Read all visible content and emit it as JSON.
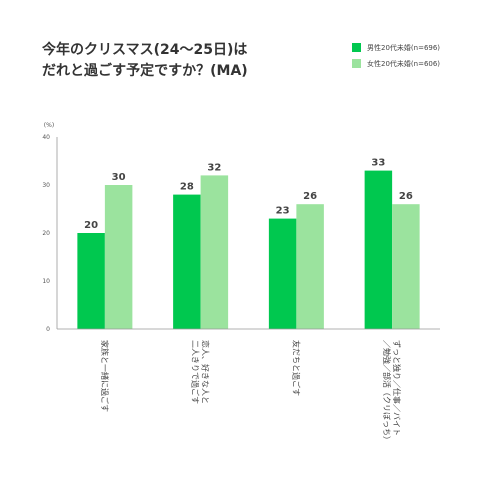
{
  "title_lines": [
    "今年のクリスマス(24〜25日)は",
    "だれと過ごす予定ですか？(MA)"
  ],
  "colors": {
    "male": "#00c84f",
    "female": "#9be39e",
    "axis": "#999999",
    "grid": "#cccccc"
  },
  "chart_data": {
    "type": "bar",
    "title": "今年のクリスマス(24〜25日)は だれと過ごす予定ですか？(MA)",
    "ylabel": "(%)",
    "ylim": [
      0,
      40
    ],
    "yticks": [
      0,
      10,
      20,
      30,
      40
    ],
    "categories": [
      "家族と一緒に過ごす",
      "恋人、好きな人と 二人きりで過ごす",
      "友だちと過ごす",
      "ずっと独り／仕事／バイト ／勉強／部活（クリぼっち）"
    ],
    "category_lines": [
      [
        "家族と一緒に過ごす"
      ],
      [
        "恋人、好きな人と",
        "二人きりで過ごす"
      ],
      [
        "友だちと過ごす"
      ],
      [
        "ずっと独り／仕事／バイト",
        "／勉強／部活（クリぼっち）"
      ]
    ],
    "series": [
      {
        "name": "男性20代未婚(n=696)",
        "values": [
          20,
          28,
          23,
          33
        ]
      },
      {
        "name": "女性20代未婚(n=606)",
        "values": [
          30,
          32,
          26,
          26
        ]
      }
    ],
    "grid": false,
    "legend": "top-right"
  }
}
